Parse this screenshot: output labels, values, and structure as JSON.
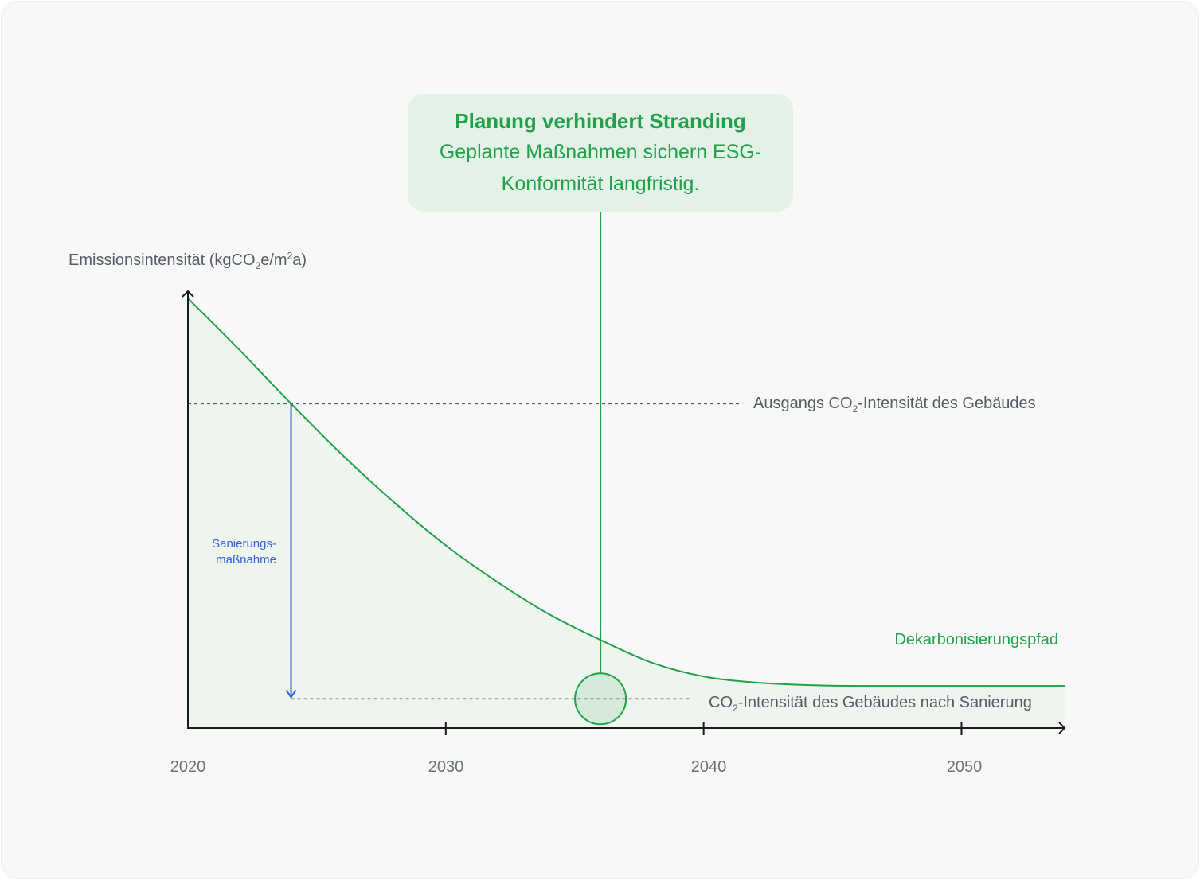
{
  "callout": {
    "title": "Planung verhindert Stranding",
    "text": "Geplante Maßnahmen sichern ESG-Konformität langfristig."
  },
  "chart_data": {
    "type": "line",
    "title": "",
    "ylabel": {
      "prefix": "Emissionsintensität (kgCO",
      "sub": "2",
      "mid": "e/m",
      "sup": "2",
      "suffix": "a)"
    },
    "xlabel": "",
    "xlim": [
      2020,
      2054
    ],
    "x_ticks": [
      2020,
      2030,
      2040,
      2050
    ],
    "y_ticks": [],
    "series": [
      {
        "name": "Dekarbonisierungspfad",
        "color": "#22a04a",
        "x": [
          2020,
          2022,
          2024,
          2026,
          2028,
          2030,
          2032,
          2034,
          2036,
          2038,
          2040,
          2042,
          2044,
          2046,
          2048,
          2050,
          2054
        ],
        "y": [
          100,
          88,
          75.5,
          63.5,
          52.5,
          42.5,
          34,
          26.5,
          20.5,
          15.2,
          12,
          10.6,
          10,
          9.8,
          9.8,
          9.8,
          9.8
        ]
      }
    ],
    "reference_lines": [
      {
        "id": "baseline",
        "y": 75.5,
        "x_start": 2020,
        "x_end": 2041.5,
        "label_prefix": "Ausgangs CO",
        "label_sub": "2",
        "label_suffix": "-Intensität des Gebäudes"
      },
      {
        "id": "after",
        "y": 6.8,
        "x_start": 2024,
        "x_end": 2039.5,
        "label_prefix": "CO",
        "label_sub": "2",
        "label_suffix": "-Intensität des Gebäudes nach Sanierung"
      }
    ],
    "annotations": {
      "retrofit": {
        "line1": "Sanierungs-",
        "line2": "maßnahme",
        "x": 2024,
        "from_y": 75.5,
        "to_y": 6.8,
        "color": "#3360d6"
      },
      "marker": {
        "x": 2036,
        "y": 6.8
      }
    },
    "colors": {
      "line": "#22a04a",
      "area": "#eef5ef",
      "axis": "#1a1a1a",
      "reference": "#555e68",
      "callout_bg": "#e3f1e6"
    }
  }
}
